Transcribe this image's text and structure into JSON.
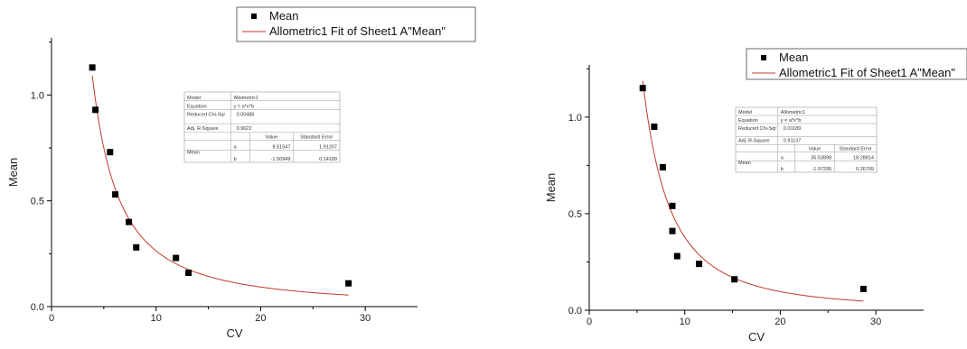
{
  "chart_data": [
    {
      "type": "scatter",
      "xlabel": "CV",
      "ylabel": "Mean",
      "xlim": [
        0,
        35
      ],
      "ylim": [
        0,
        1.27
      ],
      "xticks": [
        "0",
        "10",
        "20",
        "30"
      ],
      "yticks": [
        "0.0",
        "0.5",
        "1.0"
      ],
      "legend": {
        "points": "Mean",
        "fit": "Allometric1 Fit of Sheet1 A\"Mean\""
      },
      "legend_position": "top-right",
      "series": [
        {
          "name": "Mean",
          "x": [
            3.9,
            4.2,
            5.6,
            6.1,
            7.4,
            8.1,
            11.9,
            13.1,
            28.4
          ],
          "y": [
            1.13,
            0.93,
            0.73,
            0.53,
            0.4,
            0.28,
            0.23,
            0.16,
            0.11
          ]
        }
      ],
      "fit": {
        "name": "Allometric1 Fit of Sheet1 A\"Mean\"",
        "a": 8.51547,
        "b": -1.50949,
        "x_range": [
          3.9,
          28.4
        ]
      },
      "fit_table": {
        "model_label": "Model",
        "model": "Allometric1",
        "equation_label": "Equation",
        "equation": "y = a*x^b",
        "reduced_chisqr_label": "Reduced Chi-Sqr",
        "reduced_chisqr": "0.00486",
        "adj_r_label": "Adj. R-Square",
        "adj_r": "0.9622",
        "value_header": "Value",
        "error_header": "Standard Error",
        "row_label": "Mean",
        "param_a": "a",
        "a_value": "8.51547",
        "a_error": "1.91207",
        "param_b": "b",
        "b_value": "-1.50949",
        "b_error": "0.14189"
      }
    },
    {
      "type": "scatter",
      "xlabel": "CV",
      "ylabel": "Mean",
      "xlim": [
        0,
        35
      ],
      "ylim": [
        0,
        1.27
      ],
      "xticks": [
        "0",
        "10",
        "20",
        "30"
      ],
      "yticks": [
        "0.0",
        "0.5",
        "1.0"
      ],
      "legend": {
        "points": "Mean",
        "fit": "Allometric1 Fit of Sheet1 A\"Mean\""
      },
      "legend_position": "top-right",
      "series": [
        {
          "name": "Mean",
          "x": [
            5.6,
            6.8,
            7.7,
            8.7,
            8.7,
            9.2,
            11.5,
            15.2,
            28.7
          ],
          "y": [
            1.15,
            0.95,
            0.74,
            0.54,
            0.41,
            0.28,
            0.24,
            0.16,
            0.11
          ]
        }
      ],
      "fit": {
        "name": "Allometric1 Fit of Sheet1 A\"Mean\"",
        "a": 35.53898,
        "b": -1.97295,
        "x_range": [
          5.6,
          28.7
        ]
      },
      "fit_table": {
        "model_label": "Model",
        "model": "Allometric1",
        "equation_label": "Equation",
        "equation": "y = a*x^b",
        "reduced_chisqr_label": "Reduced Chi-Sqr",
        "reduced_chisqr": "0.01189",
        "adj_r_label": "Adj. R-Square",
        "adj_r": "0.91137",
        "value_header": "Value",
        "error_header": "Standard Error",
        "row_label": "Mean",
        "param_a": "a",
        "a_value": "35.53898",
        "a_error": "18.28814",
        "param_b": "b",
        "b_value": "-1.97295",
        "b_error": "0.26709"
      }
    }
  ]
}
